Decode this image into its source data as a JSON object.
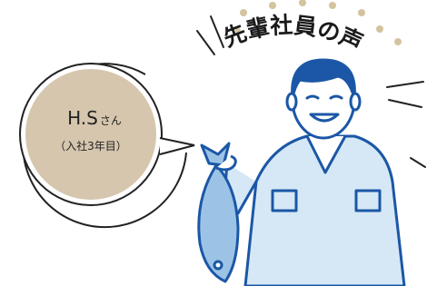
{
  "title": "先輩社員の声",
  "profile": {
    "name": "H.S",
    "honorific": "さん",
    "tenure": "（入社3年目）"
  }
}
